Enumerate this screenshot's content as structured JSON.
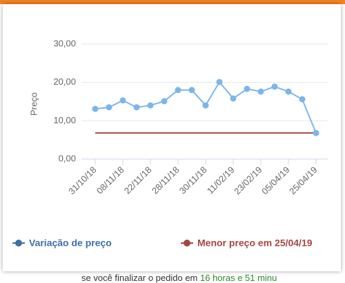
{
  "chart_data": {
    "type": "line",
    "y_label": "Preço",
    "categories": [
      "31/10/18",
      null,
      "08/11/18",
      null,
      "22/11/18",
      null,
      "28/11/18",
      null,
      "30/11/18",
      null,
      "11/02/19",
      null,
      "23/02/19",
      null,
      "05/04/19",
      null,
      "25/04/19"
    ],
    "series": [
      {
        "name": "Variação de preço",
        "color": "#7cb5ec",
        "legend_color": "#3d6fa8",
        "values": [
          13.1,
          13.5,
          15.3,
          13.5,
          14.0,
          15.1,
          18.0,
          18.0,
          14.0,
          20.1,
          15.8,
          18.3,
          17.6,
          18.9,
          17.6,
          15.6,
          6.8
        ]
      },
      {
        "name": "Menor preço em 25/04/19",
        "color": "#a94442",
        "legend_color": "#a94442",
        "values": [
          6.8,
          6.8,
          6.8,
          6.8,
          6.8,
          6.8,
          6.8,
          6.8,
          6.8,
          6.8,
          6.8,
          6.8,
          6.8,
          6.8,
          6.8,
          6.8,
          6.8
        ]
      }
    ],
    "ylim": [
      0,
      30
    ],
    "yticks": [
      {
        "value": 0,
        "label": "0,00"
      },
      {
        "value": 10,
        "label": "10,00"
      },
      {
        "value": 20,
        "label": "20,00"
      },
      {
        "value": 30,
        "label": "30,00"
      }
    ],
    "grid": true,
    "legend": "bottom"
  },
  "background_text": [
    "se você finalizar o pedido em",
    "16 horas e 51 minu"
  ]
}
